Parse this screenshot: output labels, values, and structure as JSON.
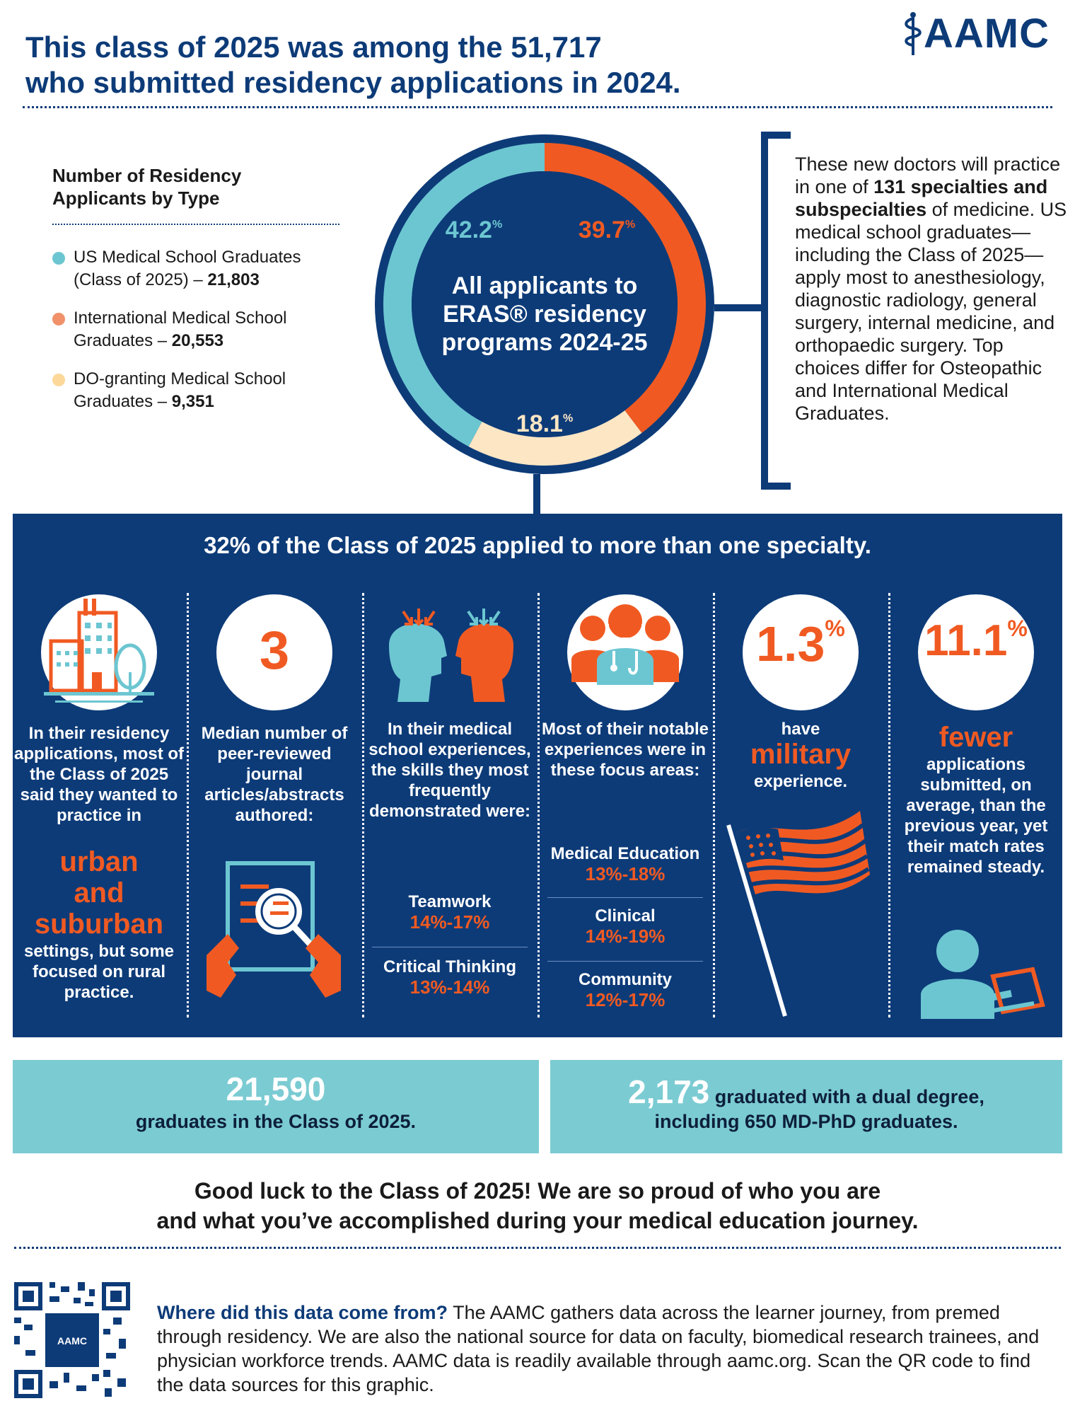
{
  "header": {
    "title_line1": "This class of 2025 was among the 51,717",
    "title_line2": "who submitted residency applications in 2024.",
    "logo_text": "AAMC"
  },
  "legend": {
    "title_line1": "Number of Residency",
    "title_line2": "Applicants by Type",
    "items": [
      {
        "line1": "US Medical School Graduates",
        "line2": "(Class of 2025) – ",
        "value": "21,803",
        "color": "#6cc6d1"
      },
      {
        "line1": "International Medical School",
        "line2": "Graduates – ",
        "value": "20,553",
        "color": "#f0916a"
      },
      {
        "line1": "DO-granting Medical School",
        "line2": "Graduates – ",
        "value": "9,351",
        "color": "#fcd89a"
      }
    ]
  },
  "chart_data": {
    "type": "pie",
    "title": "All applicants to ERAS® residency programs 2024-25",
    "title_line1": "All applicants to",
    "title_line2": "ERAS® residency",
    "title_line3": "programs 2024-25",
    "categories": [
      "US Medical School Graduates",
      "International Medical School Graduates",
      "DO-granting Medical School Graduates"
    ],
    "values": [
      42.2,
      39.7,
      18.1
    ],
    "labels": [
      "42.2",
      "39.7",
      "18.1"
    ],
    "unit": "%",
    "colors": [
      "#6cc6d1",
      "#f05a22",
      "#fde6c4"
    ]
  },
  "right_text": {
    "part1": "These new doctors will practice in one of ",
    "bold": "131 specialties and subspecialties",
    "part2": " of medicine. US medical school graduates—including the Class of 2025—apply most to anesthesiology, diagnostic radiology, general surgery, internal medicine, and orthopaedic surgery. Top choices differ for Osteopathic and International Medical Graduates."
  },
  "band": {
    "title": "32% of the Class of 2025 applied to more than one specialty.",
    "col1": {
      "text_top": "In their residency applications, most of the Class of 2025 said they wanted to practice in",
      "highlight_line1": "urban",
      "highlight_line2": "and",
      "highlight_line3": "suburban",
      "text_bottom": "settings, but some focused on rural practice."
    },
    "col2": {
      "stat": "3",
      "text": "Median number of peer-reviewed journal articles/abstracts authored:"
    },
    "col3": {
      "text": "In their medical school experiences, the skills they most frequently demonstrated were:",
      "items": [
        {
          "label": "Teamwork",
          "value": "14%-17%"
        },
        {
          "label": "Critical Thinking",
          "value": "13%-14%"
        }
      ]
    },
    "col4": {
      "text": "Most of their notable experiences were in these focus areas:",
      "items": [
        {
          "label": "Medical Education",
          "value": "13%-18%"
        },
        {
          "label": "Clinical",
          "value": "14%-19%"
        },
        {
          "label": "Community",
          "value": "12%-17%"
        }
      ]
    },
    "col5": {
      "stat": "1.3",
      "stat_unit": "%",
      "text_top": "have",
      "highlight": "military",
      "text_bottom": "experience."
    },
    "col6": {
      "stat": "11.1",
      "stat_unit": "%",
      "highlight": "fewer",
      "text": "applications submitted, on average, than the previous year, yet their match rates remained steady."
    }
  },
  "boxes": {
    "left_big": "21,590",
    "left_small": "graduates in the Class of 2025.",
    "right_big": "2,173",
    "right_small1": " graduated with a dual degree,",
    "right_small2": "including 650 MD-PhD graduates."
  },
  "closing": {
    "line1": "Good luck to the Class of 2025! We are so proud of who you are",
    "line2": "and what you’ve accomplished during your medical education journey."
  },
  "footer": {
    "question": "Where did this data come from?",
    "text": " The AAMC gathers data across the learner journey, from premed through residency. We are also the national source for data on faculty, biomedical research trainees, and physician workforce trends. AAMC data is readily available through aamc.org. Scan the QR code to find the data sources for this graphic.",
    "qr_label": "AAMC"
  }
}
